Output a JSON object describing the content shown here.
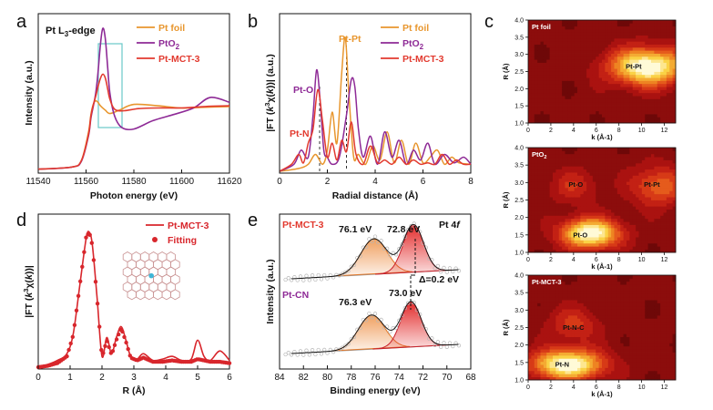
{
  "colors": {
    "foil": "#e8962e",
    "pto2": "#8e2a96",
    "mct": "#e23a2f",
    "fit": "#d8262c",
    "orangeFill": "#f0a060",
    "redFill": "#e32b2b",
    "box": "#69c8c8",
    "base": "#999999"
  },
  "panel_labels": {
    "a": "a",
    "b": "b",
    "c": "c",
    "d": "d",
    "e": "e"
  },
  "chart_data": [
    {
      "id": "a",
      "type": "line",
      "title": "Pt L3-edge",
      "title_main": "Pt L",
      "title_sub": "3",
      "title_end": "-edge",
      "xlabel": "Photon energy (eV)",
      "ylabel": "Intensity (a.u.)",
      "xlim": [
        11540,
        11620
      ],
      "ylim": [
        0,
        2.2
      ],
      "xticks": [
        "11540",
        "11560",
        "11580",
        "11600",
        "11620"
      ],
      "legend": [
        "Pt foil",
        "PtO2"
      ],
      "legend_parts": {
        "foil": "Pt foil",
        "pto2_main": "PtO",
        "pto2_sub": "2",
        "mct": "Pt-MCT-3"
      },
      "series": [
        {
          "name": "Pt foil",
          "x": [
            11540,
            11554,
            11558,
            11561,
            11562,
            11563,
            11564,
            11565,
            11566,
            11568,
            11570,
            11574,
            11580,
            11590,
            11600,
            11610,
            11620
          ],
          "y": [
            0.03,
            0.06,
            0.15,
            0.55,
            0.8,
            0.95,
            1.0,
            0.98,
            0.93,
            0.87,
            0.82,
            0.87,
            0.95,
            0.93,
            0.9,
            0.91,
            0.92
          ]
        },
        {
          "name": "PtO2",
          "x": [
            11540,
            11554,
            11558,
            11561,
            11562,
            11563,
            11564,
            11565,
            11566,
            11567,
            11568,
            11569,
            11570,
            11572,
            11575,
            11580,
            11588,
            11596,
            11605,
            11612,
            11620
          ],
          "y": [
            0.03,
            0.06,
            0.14,
            0.5,
            0.75,
            0.92,
            1.1,
            1.4,
            1.8,
            2.03,
            1.9,
            1.5,
            1.1,
            0.78,
            0.62,
            0.6,
            0.72,
            0.8,
            0.9,
            1.05,
            0.98
          ]
        },
        {
          "name": "Pt-MCT-3",
          "x": [
            11540,
            11554,
            11558,
            11561,
            11562,
            11563,
            11564,
            11565,
            11566,
            11567,
            11568,
            11569,
            11570,
            11572,
            11576,
            11582,
            11590,
            11600,
            11610,
            11620
          ],
          "y": [
            0.03,
            0.06,
            0.15,
            0.52,
            0.78,
            0.94,
            1.06,
            1.2,
            1.32,
            1.38,
            1.33,
            1.18,
            1.02,
            0.88,
            0.86,
            0.89,
            0.9,
            0.9,
            0.92,
            0.93
          ]
        }
      ]
    },
    {
      "id": "b",
      "type": "line",
      "xlabel": "Radial distance (Å)",
      "ylabel": "|FT (k3x(k))| (a.u.)",
      "ylabel_parts": {
        "pre": "|FT (",
        "k": "k",
        "sup": "3",
        "mid": "χ(",
        "k2": "k",
        "post": "))| (a.u.)"
      },
      "xlim": [
        0,
        8
      ],
      "ylim": [
        0,
        1.1
      ],
      "xticks": [
        "0",
        "2",
        "4",
        "6",
        "8"
      ],
      "legend": [
        "Pt foil",
        "PtO2",
        "Pt-MCT-3"
      ],
      "annotations": {
        "ptpt": "Pt-Pt",
        "pto": "Pt-O",
        "ptn": "Pt-N"
      },
      "series": [
        {
          "name": "Pt foil",
          "x": [
            0,
            0.8,
            1.2,
            1.5,
            1.8,
            2.0,
            2.2,
            2.4,
            2.6,
            2.75,
            2.9,
            3.1,
            3.3,
            3.6,
            3.9,
            4.2,
            4.5,
            4.8,
            5.1,
            5.4,
            5.7,
            6.0,
            6.3,
            6.6,
            6.9,
            7.2,
            7.5,
            8.0
          ],
          "y": [
            0,
            0.02,
            0.05,
            0.12,
            0.05,
            0.15,
            0.42,
            0.2,
            0.7,
            0.95,
            0.55,
            0.1,
            0.12,
            0.05,
            0.18,
            0.08,
            0.28,
            0.06,
            0.22,
            0.05,
            0.2,
            0.06,
            0.1,
            0.15,
            0.05,
            0.1,
            0.06,
            0.05
          ]
        },
        {
          "name": "PtO2",
          "x": [
            0,
            0.6,
            0.9,
            1.2,
            1.4,
            1.55,
            1.7,
            1.85,
            2.0,
            2.2,
            2.5,
            2.8,
            3.0,
            3.15,
            3.3,
            3.5,
            3.8,
            4.1,
            4.4,
            4.7,
            5.0,
            5.3,
            5.6,
            5.9,
            6.2,
            6.5,
            6.9,
            7.3,
            7.7,
            8.0
          ],
          "y": [
            0,
            0.05,
            0.15,
            0.1,
            0.4,
            0.72,
            0.5,
            0.15,
            0.1,
            0.05,
            0.1,
            0.4,
            0.65,
            0.6,
            0.3,
            0.1,
            0.25,
            0.05,
            0.28,
            0.1,
            0.22,
            0.05,
            0.15,
            0.08,
            0.2,
            0.05,
            0.12,
            0.06,
            0.1,
            0.05
          ]
        },
        {
          "name": "Pt-MCT-3",
          "x": [
            0,
            0.5,
            0.8,
            1.0,
            1.2,
            1.4,
            1.6,
            1.8,
            2.0,
            2.2,
            2.4,
            2.6,
            2.8,
            3.0,
            3.2,
            3.5,
            3.8,
            4.1,
            4.4,
            4.7,
            5.0,
            5.3,
            5.6,
            5.9,
            6.2,
            6.5,
            6.8,
            7.1,
            7.4,
            7.7,
            8.0
          ],
          "y": [
            0,
            0.05,
            0.12,
            0.06,
            0.2,
            0.3,
            0.58,
            0.35,
            0.1,
            0.2,
            0.08,
            0.22,
            0.14,
            0.35,
            0.12,
            0.05,
            0.18,
            0.06,
            0.08,
            0.05,
            0.1,
            0.05,
            0.08,
            0.05,
            0.06,
            0.05,
            0.12,
            0.05,
            0.08,
            0.05,
            0.05
          ]
        }
      ]
    },
    {
      "id": "d",
      "type": "line",
      "xlabel": "R (Å)",
      "ylabel": "|FT (k3x(k))|",
      "xlim": [
        0,
        6
      ],
      "ylim": [
        0,
        1.1
      ],
      "xticks": [
        "0",
        "1",
        "2",
        "3",
        "4",
        "5",
        "6"
      ],
      "legend": [
        "Pt-MCT-3",
        "Fitting"
      ],
      "series": [
        {
          "name": "Pt-MCT-3",
          "x": [
            0,
            0.3,
            0.6,
            0.9,
            1.1,
            1.3,
            1.5,
            1.6,
            1.7,
            1.85,
            2.0,
            2.15,
            2.3,
            2.45,
            2.6,
            2.75,
            2.9,
            3.1,
            3.3,
            3.6,
            3.9,
            4.2,
            4.5,
            4.8,
            5.0,
            5.2,
            5.4,
            5.7,
            6.0
          ],
          "y": [
            0,
            0.02,
            0.05,
            0.1,
            0.25,
            0.6,
            0.95,
            1.0,
            0.9,
            0.5,
            0.08,
            0.22,
            0.1,
            0.22,
            0.3,
            0.2,
            0.08,
            0.06,
            0.1,
            0.05,
            0.06,
            0.08,
            0.05,
            0.06,
            0.2,
            0.08,
            0.05,
            0.12,
            0.05
          ]
        },
        {
          "name": "Fitting",
          "x": [
            0,
            0.3,
            0.6,
            0.9,
            1.1,
            1.3,
            1.5,
            1.6,
            1.7,
            1.85,
            2.0,
            2.15,
            2.3,
            2.45,
            2.6,
            2.75,
            2.9,
            3.1,
            3.3,
            3.6,
            3.9,
            4.2,
            4.5,
            4.8,
            5.0,
            5.2,
            5.4,
            5.7,
            6.0
          ],
          "y": [
            0,
            0.01,
            0.03,
            0.08,
            0.24,
            0.6,
            0.96,
            1.0,
            0.9,
            0.5,
            0.07,
            0.2,
            0.09,
            0.2,
            0.29,
            0.19,
            0.07,
            0.05,
            0.07,
            0.04,
            0.04,
            0.05,
            0.04,
            0.04,
            0.06,
            0.05,
            0.04,
            0.04,
            0.03
          ]
        }
      ]
    },
    {
      "id": "e",
      "type": "area",
      "xlabel": "Binding energy (eV)",
      "ylabel": "Intensity (a.u.)",
      "xlim": [
        84,
        68
      ],
      "xticks": [
        "84",
        "82",
        "80",
        "78",
        "76",
        "74",
        "72",
        "70",
        "68"
      ],
      "title": "Pt 4f",
      "title_parts": {
        "main": "Pt 4",
        "f": "f"
      },
      "groups": [
        {
          "label": "Pt-MCT-3",
          "peaks": [
            {
              "center": 76.1,
              "label": "76.1 eV",
              "height": 0.75,
              "width": 1.1
            },
            {
              "center": 72.8,
              "label": "72.8 eV",
              "height": 1.0,
              "width": 0.85
            }
          ]
        },
        {
          "label": "Pt-CN",
          "peaks": [
            {
              "center": 76.3,
              "label": "76.3 eV",
              "height": 0.72,
              "width": 1.1
            },
            {
              "center": 73.0,
              "label": "73.0 eV",
              "height": 0.95,
              "width": 0.85
            }
          ]
        }
      ],
      "shift_label": "Δ=0.2 eV"
    },
    {
      "id": "c",
      "type": "heatmap",
      "xlabel": "k (Å-1)",
      "ylabel": "R (Å)",
      "xlim": [
        0,
        13
      ],
      "ylim": [
        1.0,
        4.0
      ],
      "xticks": [
        "0",
        "2",
        "4",
        "6",
        "8",
        "10",
        "12"
      ],
      "yticks": [
        "1.0",
        "1.5",
        "2.0",
        "2.5",
        "3.0",
        "3.5",
        "4.0"
      ],
      "maps": [
        {
          "title": "Pt foil",
          "title_main": "Pt foil",
          "title_sub": "",
          "peaks": [
            {
              "k": 10.5,
              "r": 2.65,
              "amp": 1.0,
              "sk": 2.3,
              "sr": 0.38,
              "label": "Pt-Pt"
            }
          ],
          "labels": [
            {
              "text": "Pt-Pt",
              "k": 9.3,
              "r": 2.65
            }
          ]
        },
        {
          "title": "PtO2",
          "title_main": "PtO",
          "title_sub": "2",
          "peaks": [
            {
              "k": 5.5,
              "r": 1.55,
              "amp": 1.0,
              "sk": 1.8,
              "sr": 0.3
            },
            {
              "k": 11.5,
              "r": 2.9,
              "amp": 0.45,
              "sk": 1.7,
              "sr": 0.4
            },
            {
              "k": 4.0,
              "r": 2.9,
              "amp": 0.25,
              "sk": 1.5,
              "sr": 0.35
            }
          ],
          "labels": [
            {
              "text": "Pt-O",
              "k": 4.6,
              "r": 1.5
            },
            {
              "text": "Pt-O",
              "k": 4.2,
              "r": 2.95
            },
            {
              "text": "Pt-Pt",
              "k": 10.9,
              "r": 2.95
            }
          ]
        },
        {
          "title": "Pt-MCT-3",
          "title_main": "Pt-MCT-3",
          "title_sub": "",
          "peaks": [
            {
              "k": 3.5,
              "r": 1.45,
              "amp": 1.0,
              "sk": 2.2,
              "sr": 0.3
            },
            {
              "k": 4.0,
              "r": 2.6,
              "amp": 0.3,
              "sk": 1.6,
              "sr": 0.35
            }
          ],
          "labels": [
            {
              "text": "Pt-N",
              "k": 3.0,
              "r": 1.45
            },
            {
              "text": "Pt-N-C",
              "k": 4.0,
              "r": 2.5
            }
          ]
        }
      ]
    }
  ]
}
